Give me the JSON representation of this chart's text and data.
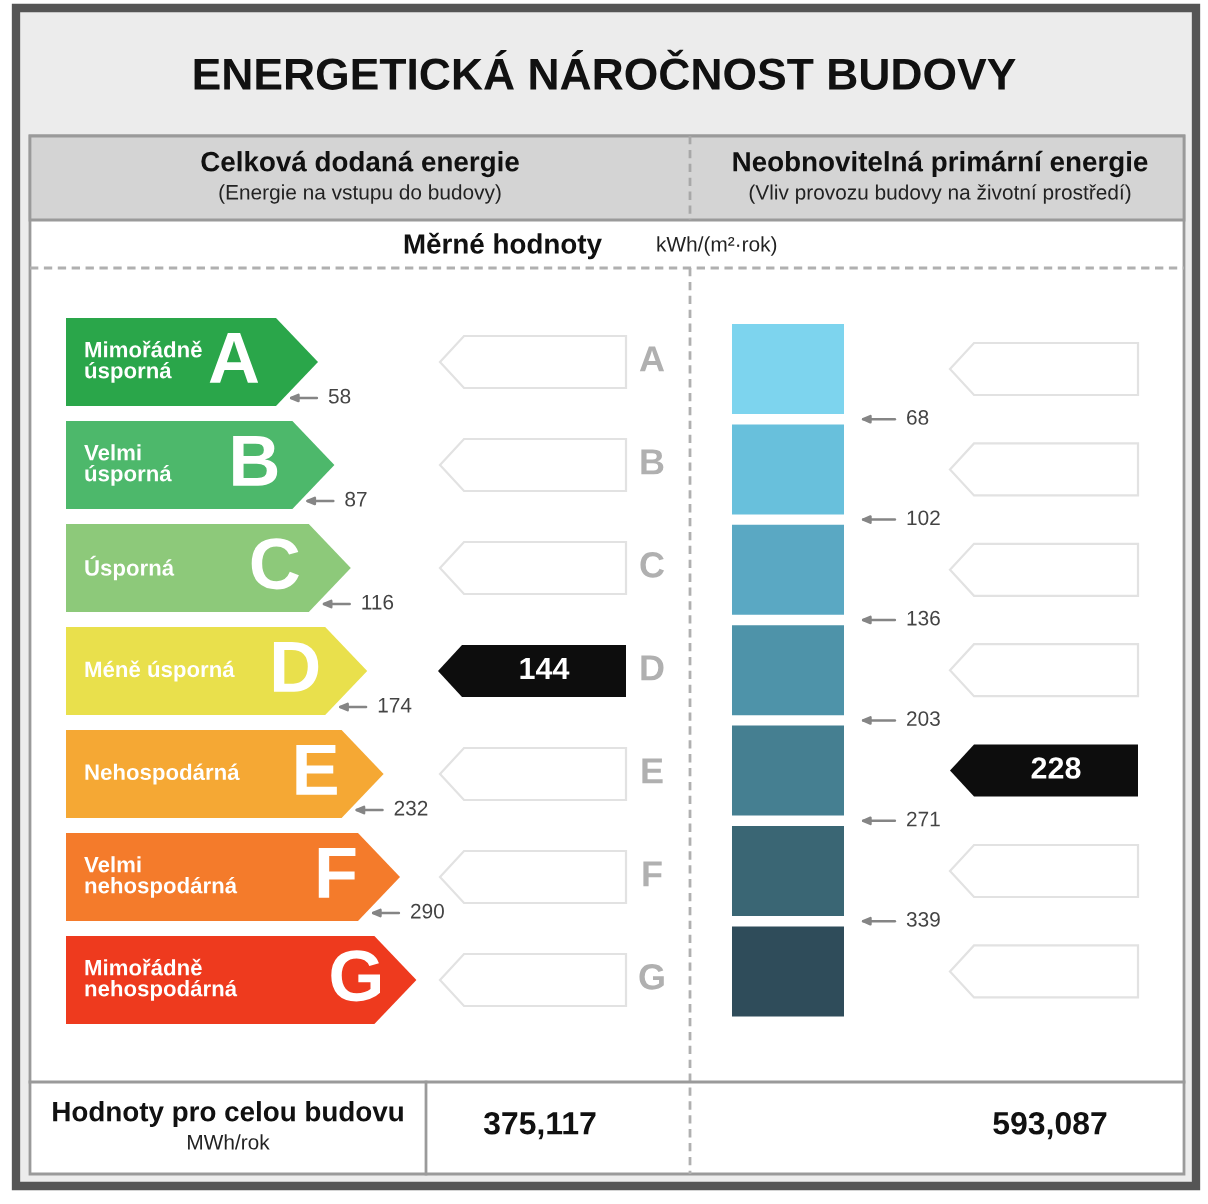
{
  "chart_data": {
    "type": "other",
    "title": "ENERGETICKÁ NÁROČNOST BUDOVY",
    "subtitle": "Měrné hodnoty",
    "ylabel": "kWh/(m²·rok)",
    "categories": [
      "A",
      "B",
      "C",
      "D",
      "E",
      "F",
      "G"
    ],
    "series": [
      {
        "name": "Celková dodaná energie",
        "colors": [
          "#2aa64a",
          "#4db86b",
          "#8dc97a",
          "#e9e04c",
          "#f5a834",
          "#f47b2b",
          "#ee3a1e"
        ],
        "values": [
          58,
          87,
          116,
          174,
          232,
          290,
          null
        ]
      },
      {
        "name": "Neobnovitelná primární energie",
        "colors": [
          "#7dd4ee",
          "#68c0dc",
          "#5aa8c3",
          "#4e93a9",
          "#457f91",
          "#3a6674",
          "#2f4c5a"
        ],
        "values": [
          68,
          102,
          136,
          203,
          271,
          339,
          null
        ]
      }
    ],
    "data_labels": true,
    "annotations": [
      "(Energie na vstupu do budovy)",
      "(Vliv provozu budovy na životní prostředí)",
      "Mimořádně úsporná",
      "Velmi úsporná",
      "Úsporná",
      "Méně úsporná",
      "Nehospodárná",
      "Velmi nehospodárná",
      "Mimořádně nehospodárná",
      {
        "text": "144",
        "x": "Celková dodaná energie",
        "y": "D"
      },
      {
        "text": "228",
        "x": "Neobnovitelná primární energie",
        "y": "E"
      },
      "Hodnoty pro celou budovu",
      "MWh/rok",
      "375,117",
      "593,087"
    ]
  }
}
